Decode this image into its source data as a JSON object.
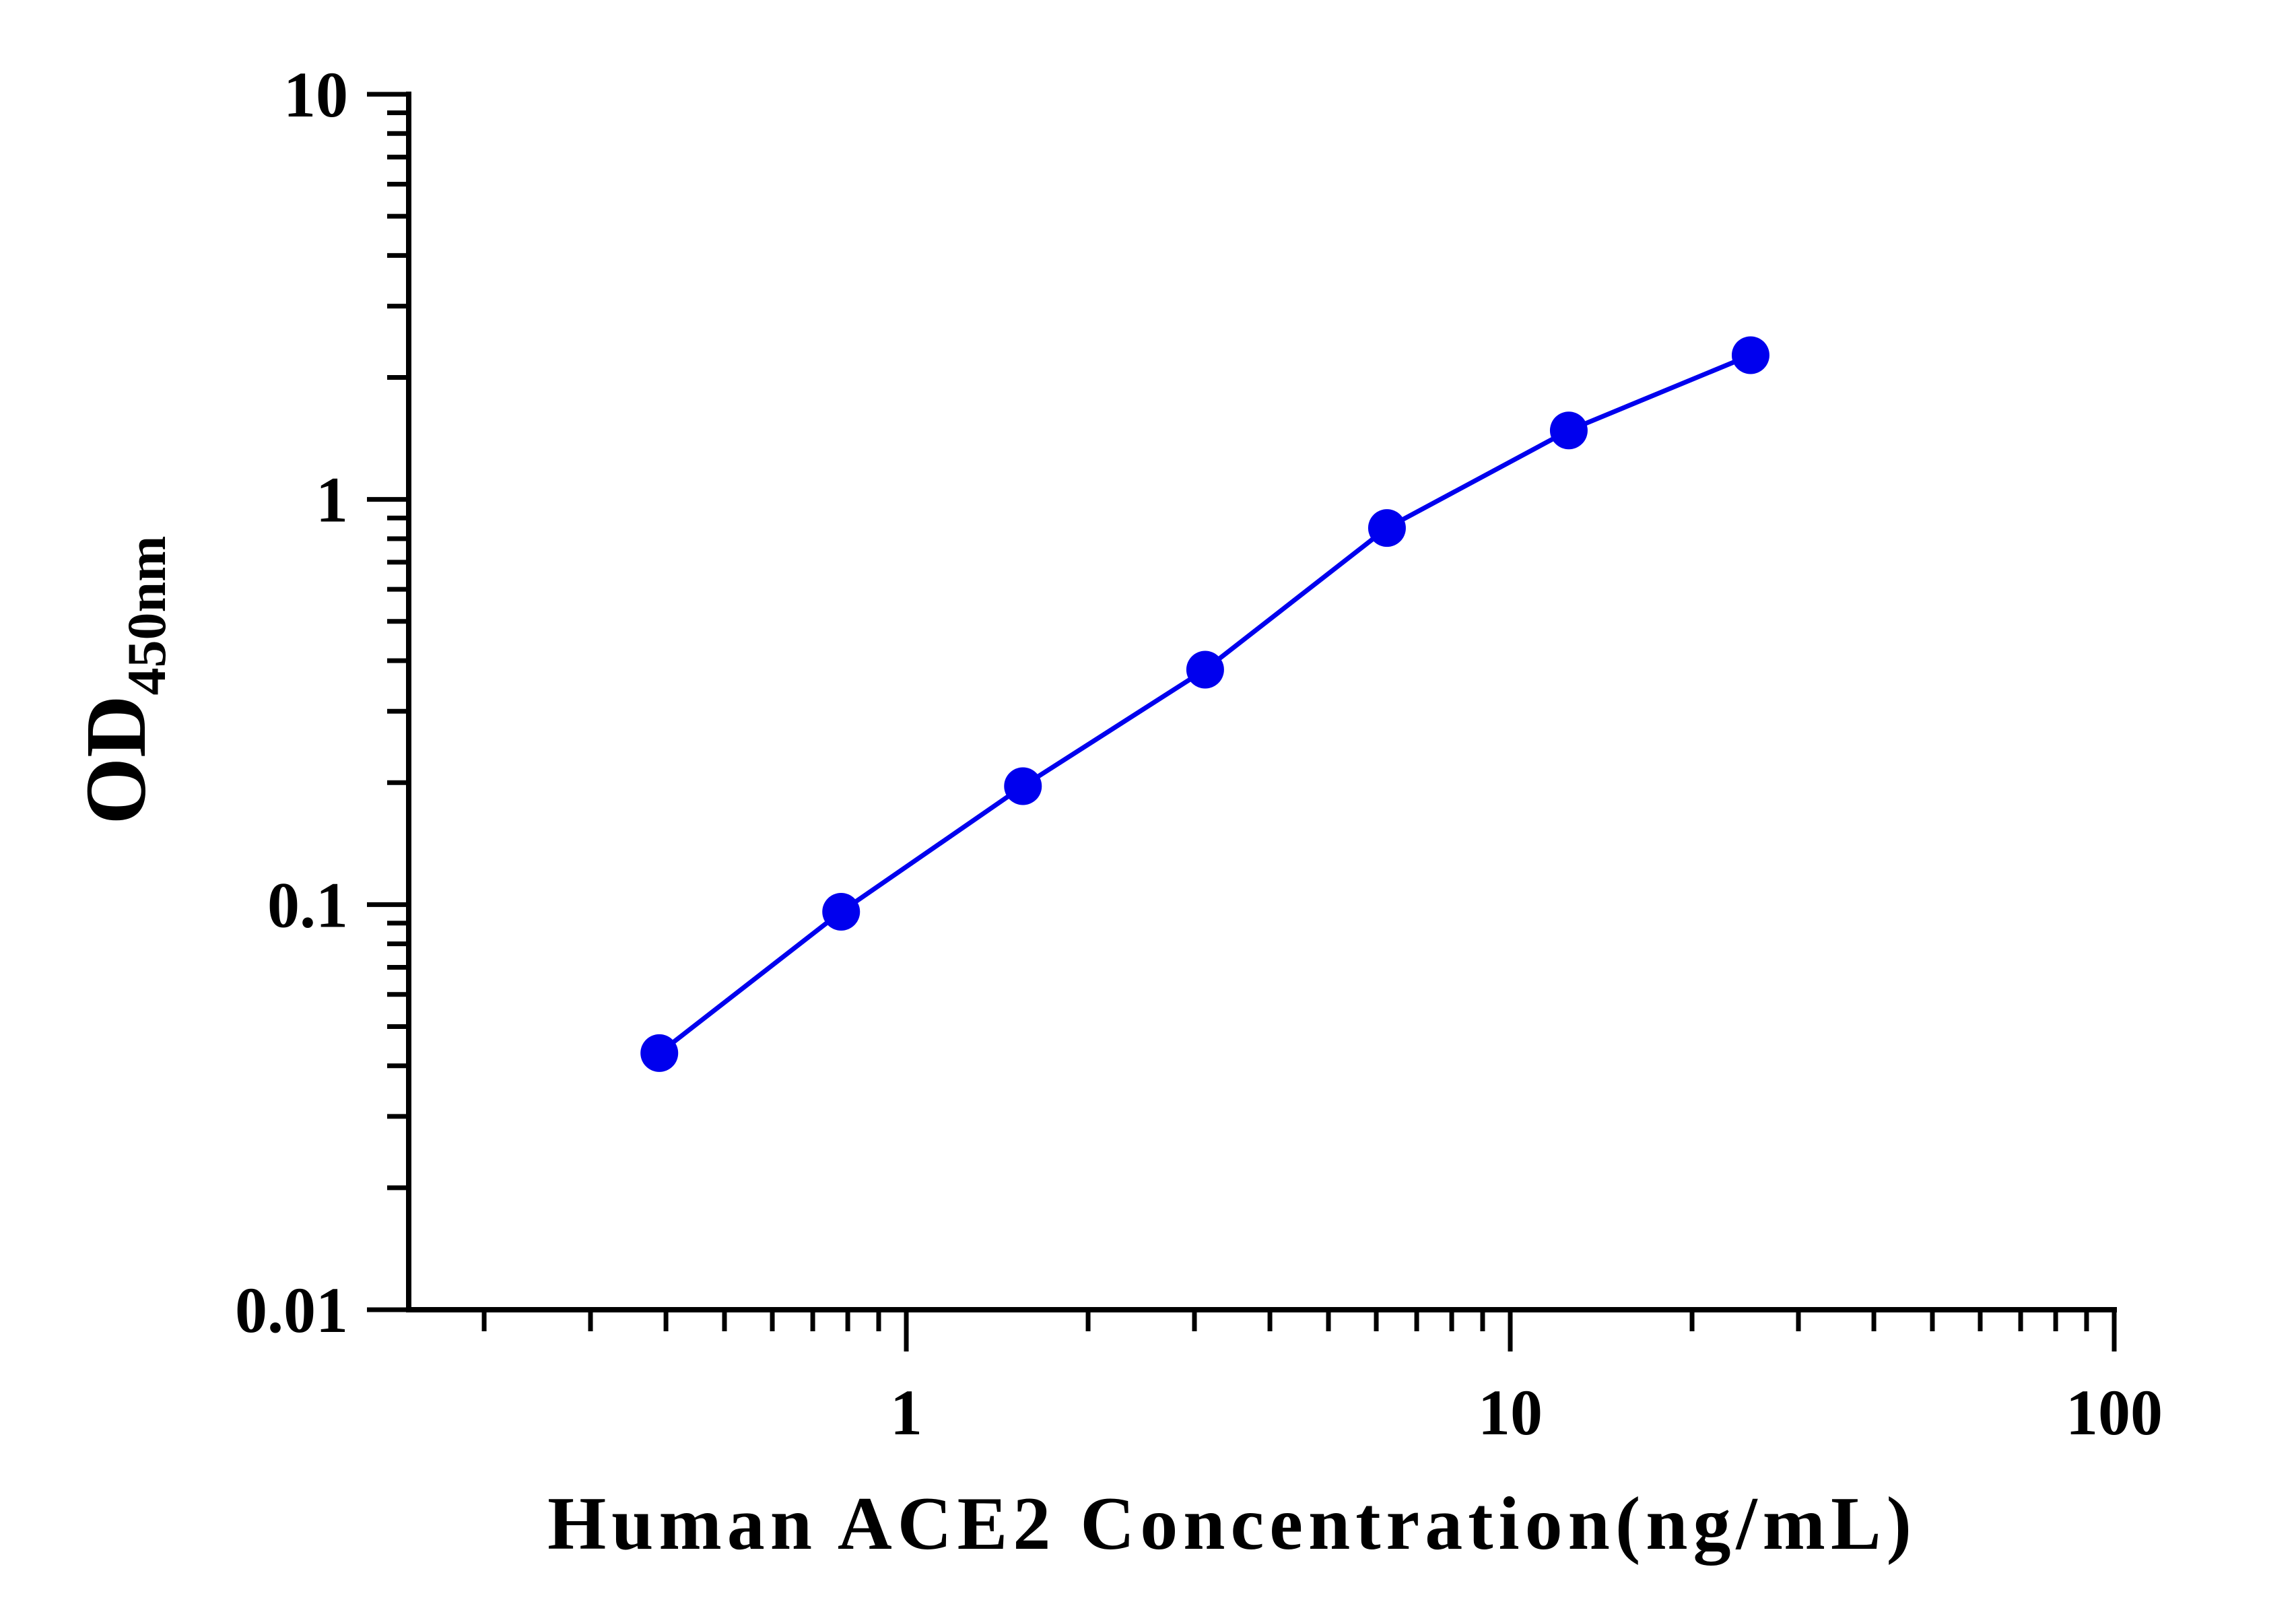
{
  "chart_data": {
    "type": "scatter",
    "xlabel": "Human ACE2 Concentration(ng/mL)",
    "ylabel_main": "OD",
    "ylabel_sub": "450nm",
    "x_scale": "log",
    "y_scale": "log",
    "xlim": [
      0.15,
      100
    ],
    "ylim": [
      0.01,
      10
    ],
    "x_tick_labels": [
      {
        "value": 1,
        "label": "1"
      },
      {
        "value": 10,
        "label": "10"
      },
      {
        "value": 100,
        "label": "100"
      }
    ],
    "y_tick_labels": [
      {
        "value": 0.01,
        "label": "0.01"
      },
      {
        "value": 0.1,
        "label": "0.1"
      },
      {
        "value": 1,
        "label": "1"
      },
      {
        "value": 10,
        "label": "10"
      }
    ],
    "grid": false,
    "series": [
      {
        "color": "#0000ee",
        "x": [
          0.39,
          0.78,
          1.56,
          3.125,
          6.25,
          12.5,
          25
        ],
        "y": [
          0.043,
          0.096,
          0.196,
          0.38,
          0.85,
          1.48,
          2.27
        ]
      }
    ]
  }
}
